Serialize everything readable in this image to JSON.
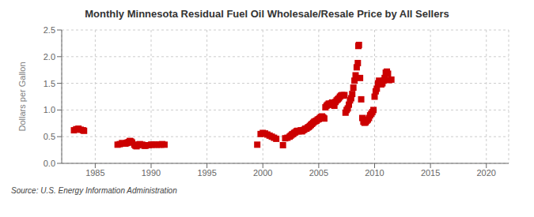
{
  "chart_data": {
    "type": "scatter",
    "title": "Monthly Minnesota Residual Fuel Oil Wholesale/Resale Price by All Sellers",
    "ylabel": "Dollars per Gallon",
    "annotations": [
      "Source: U.S. Energy Information Administration"
    ],
    "color": "#cc0000",
    "marker": "square",
    "grid": true,
    "xlim": [
      1982,
      2022
    ],
    "ylim": [
      0.0,
      2.5
    ],
    "xticks": [
      1985,
      1990,
      1995,
      2000,
      2005,
      2010,
      2015,
      2020
    ],
    "yticks": [
      {
        "value": 0.0,
        "label": "0.0"
      },
      0.5,
      {
        "value": 1.0,
        "label": "1.0"
      },
      1.5,
      {
        "value": 2.0,
        "label": "2.0"
      },
      2.5
    ],
    "x": [
      1983.1,
      1983.3,
      1983.5,
      1983.7,
      1983.9,
      1984.0,
      1987.0,
      1987.2,
      1987.4,
      1987.7,
      1987.8,
      1987.9,
      1988.0,
      1988.1,
      1988.2,
      1988.3,
      1988.5,
      1988.6,
      1988.7,
      1988.8,
      1988.9,
      1989.0,
      1989.2,
      1989.4,
      1989.5,
      1989.6,
      1989.8,
      1990.0,
      1990.1,
      1990.3,
      1990.5,
      1990.7,
      1990.9,
      1991.0,
      1991.2,
      1999.5,
      1999.8,
      2000.0,
      2000.2,
      2000.4,
      2000.6,
      2000.8,
      2001.0,
      2001.2,
      2001.8,
      2002.0,
      2002.2,
      2002.4,
      2002.5,
      2002.6,
      2002.7,
      2002.8,
      2002.9,
      2003.0,
      2003.1,
      2003.2,
      2003.4,
      2003.5,
      2003.6,
      2003.7,
      2003.8,
      2003.9,
      2004.0,
      2004.1,
      2004.2,
      2004.3,
      2004.4,
      2004.5,
      2004.6,
      2004.7,
      2004.8,
      2004.9,
      2005.0,
      2005.1,
      2005.2,
      2005.3,
      2005.4,
      2005.5,
      2005.6,
      2005.7,
      2005.8,
      2005.9,
      2006.0,
      2006.1,
      2006.2,
      2006.3,
      2006.4,
      2006.5,
      2006.6,
      2006.7,
      2006.8,
      2006.9,
      2007.0,
      2007.1,
      2007.2,
      2007.3,
      2007.4,
      2007.5,
      2007.6,
      2007.7,
      2007.8,
      2007.9,
      2008.0,
      2008.1,
      2008.2,
      2008.3,
      2008.4,
      2008.5,
      2008.55,
      2008.6,
      2008.7,
      2008.8,
      2008.9,
      2009.0,
      2009.1,
      2009.2,
      2009.3,
      2009.4,
      2009.5,
      2009.6,
      2009.7,
      2009.8,
      2009.9,
      2010.0,
      2010.1,
      2010.2,
      2010.3,
      2010.4,
      2010.5,
      2010.6,
      2010.7,
      2010.8,
      2010.9,
      2011.0,
      2011.1,
      2011.2,
      2011.3,
      2011.5
    ],
    "values": [
      0.62,
      0.64,
      0.65,
      0.63,
      0.62,
      0.61,
      0.35,
      0.36,
      0.38,
      0.37,
      0.38,
      0.39,
      0.4,
      0.42,
      0.41,
      0.39,
      0.35,
      0.33,
      0.32,
      0.34,
      0.35,
      0.36,
      0.35,
      0.33,
      0.33,
      0.34,
      0.34,
      0.35,
      0.35,
      0.35,
      0.35,
      0.35,
      0.35,
      0.36,
      0.35,
      0.35,
      0.55,
      0.57,
      0.56,
      0.54,
      0.52,
      0.5,
      0.48,
      0.46,
      0.34,
      0.47,
      0.48,
      0.5,
      0.52,
      0.54,
      0.55,
      0.57,
      0.58,
      0.6,
      0.61,
      0.6,
      0.62,
      0.6,
      0.62,
      0.63,
      0.65,
      0.65,
      0.67,
      0.68,
      0.7,
      0.72,
      0.74,
      0.76,
      0.78,
      0.79,
      0.8,
      0.82,
      0.83,
      0.85,
      0.87,
      0.88,
      0.86,
      0.84,
      1.05,
      1.08,
      1.1,
      1.12,
      1.1,
      1.12,
      1.14,
      1.1,
      1.08,
      1.15,
      1.18,
      1.2,
      1.22,
      1.25,
      1.27,
      1.28,
      1.27,
      1.28,
      0.95,
      1.0,
      1.03,
      1.1,
      1.18,
      1.22,
      1.3,
      1.42,
      1.55,
      1.65,
      1.8,
      1.88,
      2.2,
      2.22,
      1.6,
      1.2,
      0.85,
      0.78,
      0.76,
      0.77,
      0.8,
      0.82,
      0.85,
      0.9,
      0.93,
      0.96,
      1.0,
      1.25,
      1.35,
      1.4,
      1.5,
      1.55,
      1.52,
      1.48,
      1.5,
      1.55,
      1.6,
      1.7,
      1.72,
      1.68,
      1.56,
      1.57
    ]
  }
}
